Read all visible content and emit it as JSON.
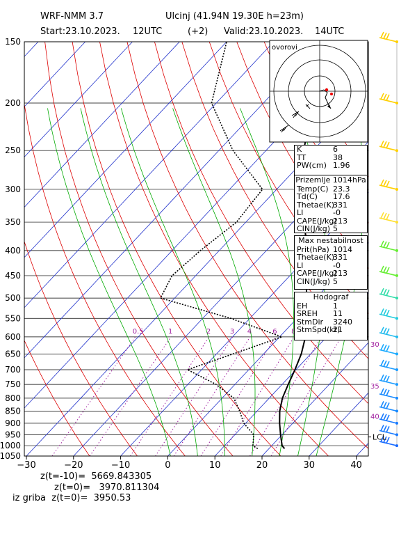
{
  "header": {
    "model": "WRF-NMM 3.7",
    "location": "Ulcinj (41.94N 19.30E  h=23m)",
    "start": "Start:23.10.2023.",
    "start_time": "12UTC",
    "offset": "(+2)",
    "valid": "Valid:23.10.2023.",
    "valid_time": "14UTC"
  },
  "hodograph_label": "ovorovi",
  "panels": {
    "indices": [
      {
        "key": "K",
        "value": "6"
      },
      {
        "key": "TT",
        "value": "38"
      },
      {
        "key": "PW(cm)",
        "value": "1.96"
      }
    ],
    "surface": {
      "title": "Prizemlje  1014hPa",
      "rows": [
        {
          "key": "Temp(C)",
          "value": "23.3"
        },
        {
          "key": "Td(C)",
          "value": "17.6"
        },
        {
          "key": "Thetae(K)",
          "value": "331"
        },
        {
          "key": "LI",
          "value": "-0"
        },
        {
          "key": "CAPE(J/kg)",
          "value": "213"
        },
        {
          "key": "CIN(J/kg)",
          "value": "5"
        }
      ]
    },
    "max_instability": {
      "title": "Max nestabilnost",
      "rows": [
        {
          "key": "Prit(hPa)",
          "value": "1014"
        },
        {
          "key": "Thetae(K)",
          "value": "331"
        },
        {
          "key": "LI",
          "value": "-0"
        },
        {
          "key": "CAPE(J/kg)",
          "value": "213"
        },
        {
          "key": "CIN(J/kg)",
          "value": "5"
        }
      ]
    },
    "hodograph": {
      "title": "Hodograf",
      "rows": [
        {
          "key": "EH",
          "value": "1"
        },
        {
          "key": "SREH",
          "value": "11"
        },
        {
          "key": "StmDir",
          "value": "3240"
        },
        {
          "key": "StmSpd(kt)",
          "value": "21"
        }
      ]
    }
  },
  "footer": {
    "line1": "z(t=-10)=  5669.843305",
    "line2": "z(t=0)=   3970.811304",
    "line3": "iz griba  z(t=0)=  3950.53"
  },
  "chart_data": {
    "type": "line",
    "chart_kind": "skew-T log-p sounding",
    "x_axis": {
      "label": "",
      "range": [
        -30,
        40
      ],
      "ticks": [
        "−30",
        "−20",
        "−10",
        "0",
        "10",
        "20",
        "30",
        "40"
      ]
    },
    "y_axis": {
      "label": "",
      "scale": "log",
      "range": [
        1050,
        150
      ],
      "ticks": [
        "150",
        "200",
        "250",
        "300",
        "350",
        "400",
        "450",
        "500",
        "550",
        "600",
        "650",
        "700",
        "750",
        "800",
        "850",
        "900",
        "950",
        "1000",
        "1050"
      ]
    },
    "mixing_ratio_labels": [
      "0.5",
      "1",
      "2",
      "3",
      "4",
      "6",
      "8"
    ],
    "wind_speed_labels": [
      "30",
      "35",
      "40"
    ],
    "lcl_label": "LCL",
    "series": [
      {
        "key": "temperature",
        "color": "#000000",
        "style": "solid",
        "points": [
          [
            1014,
            23.3
          ],
          [
            1000,
            22.2
          ],
          [
            950,
            19.7
          ],
          [
            900,
            17.2
          ],
          [
            850,
            14.8
          ],
          [
            800,
            12.8
          ],
          [
            750,
            11.3
          ],
          [
            700,
            9.8
          ],
          [
            650,
            8.0
          ],
          [
            600,
            5.5
          ],
          [
            550,
            2.0
          ],
          [
            500,
            -2.0
          ],
          [
            450,
            -6.5
          ],
          [
            400,
            -11.5
          ],
          [
            350,
            -17.5
          ],
          [
            300,
            -24.5
          ],
          [
            250,
            -32.0
          ],
          [
            200,
            -39.5
          ],
          [
            150,
            -44.0
          ]
        ]
      },
      {
        "key": "dewpoint",
        "color": "#000000",
        "style": "dotted",
        "points": [
          [
            1014,
            17.6
          ],
          [
            1000,
            16.0
          ],
          [
            950,
            14.0
          ],
          [
            900,
            9.6
          ],
          [
            850,
            6.3
          ],
          [
            800,
            2.5
          ],
          [
            750,
            -4.0
          ],
          [
            700,
            -13.0
          ],
          [
            650,
            -6.5
          ],
          [
            600,
            0.5
          ],
          [
            550,
            -14.0
          ],
          [
            500,
            -33.0
          ],
          [
            450,
            -35.0
          ],
          [
            400,
            -34.0
          ],
          [
            350,
            -32.0
          ],
          [
            300,
            -33.0
          ],
          [
            250,
            -47.0
          ],
          [
            200,
            -61.0
          ],
          [
            150,
            -70.0
          ]
        ]
      }
    ],
    "dry_adiabats_theta_K": [
      253,
      263,
      273,
      283,
      293,
      303,
      313,
      323,
      333,
      343,
      353,
      363,
      373,
      383,
      393,
      403,
      413,
      423,
      433,
      443
    ],
    "moist_adiabats_thetaw_C": [
      -2,
      4,
      10,
      16,
      22,
      26,
      30
    ],
    "mixing_ratios_gkg": [
      0.5,
      1,
      2,
      3,
      4,
      6,
      8,
      12,
      16
    ],
    "grid": true
  },
  "colors": {
    "isotherm": "#2233cc",
    "dry_adiabat": "#dd0000",
    "moist_adiabat": "#00aa00",
    "mixing_ratio": "#a020a0",
    "wind_barb": "#1a9bff",
    "wind_barb_upper": "#ffd000",
    "wind_barb_mid": "#66ee33"
  },
  "wind_barbs": [
    {
      "p": 150,
      "color": "#ffd000"
    },
    {
      "p": 200,
      "color": "#ffd000"
    },
    {
      "p": 250,
      "color": "#ffd000"
    },
    {
      "p": 300,
      "color": "#ffd000"
    },
    {
      "p": 350,
      "color": "#ffe033"
    },
    {
      "p": 400,
      "color": "#66ee33"
    },
    {
      "p": 450,
      "color": "#66ee33"
    },
    {
      "p": 500,
      "color": "#33ddaa"
    },
    {
      "p": 550,
      "color": "#22ccdd"
    },
    {
      "p": 600,
      "color": "#22bbee"
    },
    {
      "p": 650,
      "color": "#1aaaff"
    },
    {
      "p": 700,
      "color": "#1a9bff"
    },
    {
      "p": 750,
      "color": "#1a9bff"
    },
    {
      "p": 800,
      "color": "#1a8bff"
    },
    {
      "p": 850,
      "color": "#1a8bff"
    },
    {
      "p": 900,
      "color": "#1a7bff"
    },
    {
      "p": 950,
      "color": "#1a7bff"
    },
    {
      "p": 1000,
      "color": "#1a6bff"
    }
  ]
}
